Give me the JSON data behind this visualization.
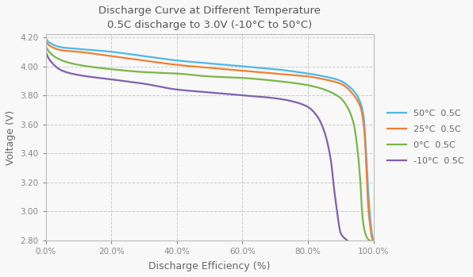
{
  "title_line1": "Discharge Curve at Different Temperature",
  "title_line2": "0.5C discharge to 3.0V (-10°C to 50°C)",
  "xlabel": "Discharge Efficiency (%)",
  "ylabel": "Voltage (V)",
  "ylim": [
    2.8,
    4.22
  ],
  "xlim": [
    0.0,
    1.0
  ],
  "yticks": [
    2.8,
    3.0,
    3.2,
    3.4,
    3.6,
    3.8,
    4.0,
    4.2
  ],
  "xticks": [
    0.0,
    0.2,
    0.4,
    0.6,
    0.8,
    1.0
  ],
  "background_color": "#f8f8f8",
  "plot_bg_color": "#f8f8f8",
  "grid_color": "#cccccc",
  "curves": [
    {
      "label": "50°C  0.5C",
      "color": "#4db8e8",
      "points_x": [
        0.0,
        0.01,
        0.05,
        0.1,
        0.2,
        0.3,
        0.4,
        0.5,
        0.6,
        0.7,
        0.8,
        0.85,
        0.9,
        0.92,
        0.94,
        0.96,
        0.97,
        0.975,
        0.98,
        0.985,
        0.99,
        0.995,
        1.0
      ],
      "points_y": [
        4.19,
        4.165,
        4.13,
        4.12,
        4.1,
        4.07,
        4.04,
        4.02,
        4.0,
        3.98,
        3.95,
        3.93,
        3.9,
        3.87,
        3.83,
        3.75,
        3.65,
        3.5,
        3.3,
        3.1,
        2.95,
        2.85,
        2.8
      ]
    },
    {
      "label": "25°C  0.5C",
      "color": "#f08030",
      "points_x": [
        0.0,
        0.01,
        0.05,
        0.1,
        0.2,
        0.3,
        0.4,
        0.5,
        0.6,
        0.7,
        0.8,
        0.85,
        0.9,
        0.92,
        0.94,
        0.96,
        0.97,
        0.975,
        0.98,
        0.985,
        0.99,
        0.995,
        1.0
      ],
      "points_y": [
        4.17,
        4.145,
        4.11,
        4.1,
        4.07,
        4.04,
        4.01,
        3.99,
        3.97,
        3.95,
        3.93,
        3.91,
        3.88,
        3.85,
        3.8,
        3.72,
        3.6,
        3.45,
        3.2,
        3.0,
        2.9,
        2.82,
        2.8
      ]
    },
    {
      "label": "0°C  0.5C",
      "color": "#7ab648",
      "points_x": [
        0.0,
        0.01,
        0.05,
        0.1,
        0.2,
        0.3,
        0.4,
        0.5,
        0.6,
        0.7,
        0.8,
        0.85,
        0.88,
        0.9,
        0.92,
        0.94,
        0.95,
        0.96,
        0.965,
        0.97,
        0.975,
        0.98,
        0.99
      ],
      "points_y": [
        4.14,
        4.1,
        4.04,
        4.01,
        3.98,
        3.96,
        3.95,
        3.93,
        3.92,
        3.9,
        3.87,
        3.84,
        3.81,
        3.78,
        3.72,
        3.6,
        3.45,
        3.2,
        3.0,
        2.9,
        2.85,
        2.82,
        2.8
      ]
    },
    {
      "label": "-10°C  0.5C",
      "color": "#8060b0",
      "points_x": [
        0.0,
        0.01,
        0.05,
        0.1,
        0.2,
        0.3,
        0.4,
        0.5,
        0.6,
        0.7,
        0.75,
        0.8,
        0.83,
        0.85,
        0.87,
        0.88,
        0.89,
        0.895,
        0.9,
        0.91,
        0.915,
        0.92
      ],
      "points_y": [
        4.1,
        4.05,
        3.97,
        3.94,
        3.91,
        3.88,
        3.84,
        3.82,
        3.8,
        3.78,
        3.76,
        3.72,
        3.65,
        3.55,
        3.35,
        3.15,
        2.98,
        2.9,
        2.85,
        2.82,
        2.81,
        2.8
      ]
    }
  ]
}
